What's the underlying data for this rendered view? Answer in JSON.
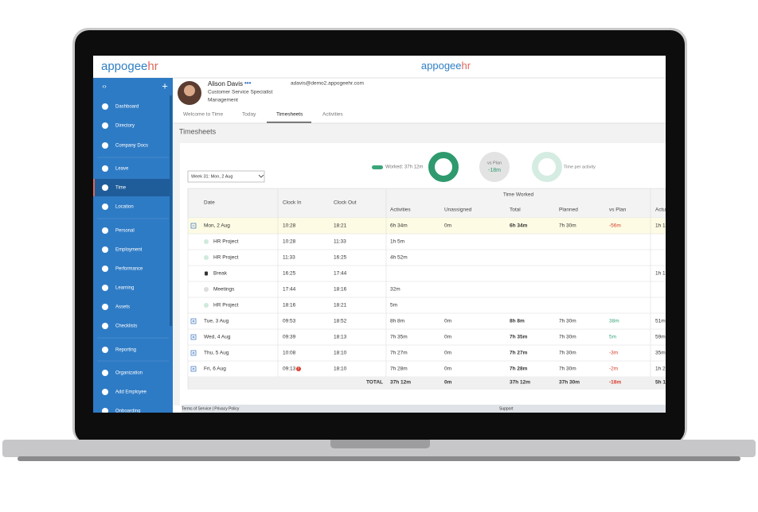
{
  "header": {
    "logo": {
      "brand": "appogee",
      "suffix": "hr"
    },
    "center_logo": {
      "brand": "appogee",
      "suffix": "hr"
    }
  },
  "sidebar": {
    "active": 4,
    "items": [
      "Dashboard",
      "Directory",
      "Company Docs",
      "Leave",
      "Time",
      "Location",
      "Personal",
      "Employment",
      "Performance",
      "Learning",
      "Assets",
      "Checklists",
      "Reporting",
      "Organization",
      "Add Employee",
      "Onboarding"
    ]
  },
  "profile": {
    "name": "Alison Davis",
    "job_title": "Customer Service Specialist",
    "department": "Management",
    "email": "adavis@demo2.appogeehr.com"
  },
  "tabs": {
    "active": 2,
    "items": [
      "Welcome to Time",
      "Today",
      "Timesheets",
      "Activities"
    ]
  },
  "page_title": "Timesheets",
  "summary": {
    "worked": "Worked: 37h 12m",
    "vs_plan_label": "vs Plan",
    "vs_plan_value": "-18m",
    "time_per_activity": "Time per activity"
  },
  "week_select": "Week 31: Mon, 2 Aug",
  "table": {
    "headers": {
      "date": "Date",
      "clock_in": "Clock In",
      "clock_out": "Clock Out",
      "time_worked": "Time Worked",
      "activities": "Activities",
      "unassigned": "Unassigned",
      "total": "Total",
      "planned": "Planned",
      "vs_plan": "vs Plan",
      "actual": "Actu"
    },
    "days": [
      {
        "date": "Mon, 2 Aug",
        "expanded": true,
        "clock_in": "10:28",
        "clock_out": "18:21",
        "activities": "6h 34m",
        "unassigned": "0m",
        "total": "6h 34m",
        "planned": "7h 30m",
        "vs_plan": "-56m",
        "actual": "1h 1",
        "entries": [
          {
            "name": "HR Project",
            "color": "#cfeadd",
            "clock_in": "10:28",
            "clock_out": "11:33",
            "activities": "1h 5m",
            "actual": null
          },
          {
            "name": "HR Project",
            "color": "#cfeadd",
            "clock_in": "11:33",
            "clock_out": "16:25",
            "activities": "4h 52m",
            "actual": null
          },
          {
            "name": "Break",
            "color": "#333333",
            "clock_in": "16:25",
            "clock_out": "17:44",
            "activities": null,
            "actual": "1h 1"
          },
          {
            "name": "Meetings",
            "color": "#dddddd",
            "clock_in": "17:44",
            "clock_out": "18:16",
            "activities": "32m",
            "actual": null
          },
          {
            "name": "HR Project",
            "color": "#cfeadd",
            "clock_in": "18:16",
            "clock_out": "18:21",
            "activities": "5m",
            "actual": null
          }
        ]
      },
      {
        "date": "Tue, 3 Aug",
        "expanded": false,
        "clock_in": "09:53",
        "clock_out": "18:52",
        "activities": "8h 8m",
        "unassigned": "0m",
        "total": "8h 8m",
        "planned": "7h 30m",
        "vs_plan": "38m",
        "actual": "51m",
        "entries": []
      },
      {
        "date": "Wed, 4 Aug",
        "expanded": false,
        "clock_in": "09:39",
        "clock_out": "18:13",
        "activities": "7h 35m",
        "unassigned": "0m",
        "total": "7h 35m",
        "planned": "7h 30m",
        "vs_plan": "5m",
        "actual": "59m",
        "entries": []
      },
      {
        "date": "Thu, 5 Aug",
        "expanded": false,
        "clock_in": "10:08",
        "clock_out": "18:10",
        "activities": "7h 27m",
        "unassigned": "0m",
        "total": "7h 27m",
        "planned": "7h 30m",
        "vs_plan": "-3m",
        "actual": "35m",
        "entries": []
      },
      {
        "date": "Fri, 6 Aug",
        "expanded": false,
        "alert": true,
        "clock_in": "09:13",
        "clock_out": "18:10",
        "activities": "7h 28m",
        "unassigned": "0m",
        "total": "7h 28m",
        "planned": "7h 30m",
        "vs_plan": "-2m",
        "actual": "1h 2",
        "entries": []
      }
    ],
    "total": {
      "label": "TOTAL",
      "activities": "37h 12m",
      "unassigned": "0m",
      "total": "37h 12m",
      "planned": "37h 30m",
      "vs_plan": "-18m",
      "actual": "5h 1"
    }
  },
  "footer": {
    "links": "Terms of Service | Privacy Policy",
    "support": "Support"
  }
}
